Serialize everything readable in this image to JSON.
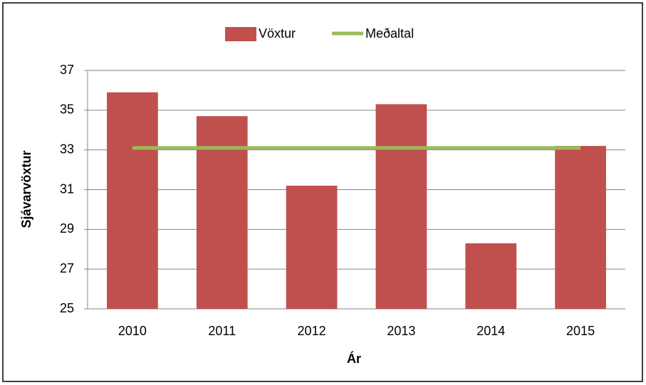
{
  "chart_data": {
    "type": "bar",
    "categories": [
      "2010",
      "2011",
      "2012",
      "2013",
      "2014",
      "2015"
    ],
    "series": [
      {
        "name": "Vöxtur",
        "type": "bar",
        "color": "#c0504d",
        "values": [
          35.9,
          34.7,
          31.2,
          35.3,
          28.3,
          33.2
        ]
      },
      {
        "name": "Meðaltal",
        "type": "line",
        "color": "#9bbb59",
        "values": [
          33.1,
          33.1,
          33.1,
          33.1,
          33.1,
          33.1
        ]
      }
    ],
    "x_label": "Ár",
    "y_label": "Sjávarvöxtur",
    "ylim": [
      25,
      37
    ],
    "yticks": [
      25,
      27,
      29,
      31,
      33,
      35,
      37
    ],
    "grid": true,
    "legend": "top"
  }
}
